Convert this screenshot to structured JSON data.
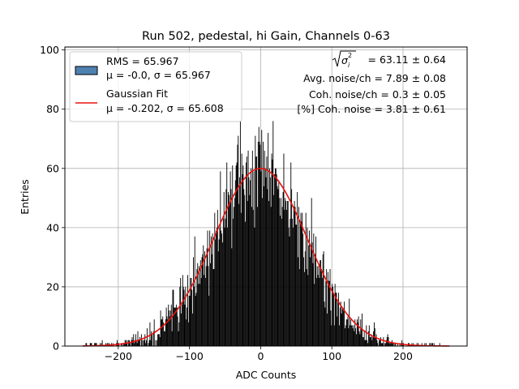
{
  "chart_data": {
    "type": "bar",
    "title": "Run 502, pedestal, hi Gain, Channels 0-63",
    "xlabel": "ADC Counts",
    "ylabel": "Entries",
    "xlim": [
      -275,
      290
    ],
    "ylim": [
      0,
      101
    ],
    "xticks": [
      -200,
      -100,
      0,
      100,
      200
    ],
    "yticks": [
      0,
      20,
      40,
      60,
      80,
      100
    ],
    "xtick_labels": [
      "−200",
      "−100",
      "0",
      "100",
      "200"
    ],
    "ytick_labels": [
      "0",
      "20",
      "40",
      "60",
      "80",
      "100"
    ],
    "grid": true,
    "histogram": {
      "name": "RMS = 65.967",
      "mean": -0.0,
      "sigma": 65.967,
      "x_min": -250,
      "x_max": 265,
      "bin_width": 1,
      "color": "#000000",
      "legend_swatch_color": "#4f81b0",
      "legend_mu": "μ = -0.0",
      "legend_sigma": "σ = 65.967"
    },
    "fit": {
      "name": "Gaussian Fit",
      "mu": -0.202,
      "sigma": 65.608,
      "amplitude": 60.0,
      "color": "#e8110e",
      "legend_mu": "μ = -0.202",
      "legend_sigma": "σ = 65.608"
    },
    "legend_loc": "upper left",
    "stats": {
      "line1_value": "= 63.11 ± 0.64",
      "line2": "Avg. noise/ch = 7.89 ± 0.08",
      "line3": "Coh. noise/ch = 0.3 ± 0.05",
      "line4": "[%] Coh. noise = 3.81 ± 0.61"
    }
  }
}
